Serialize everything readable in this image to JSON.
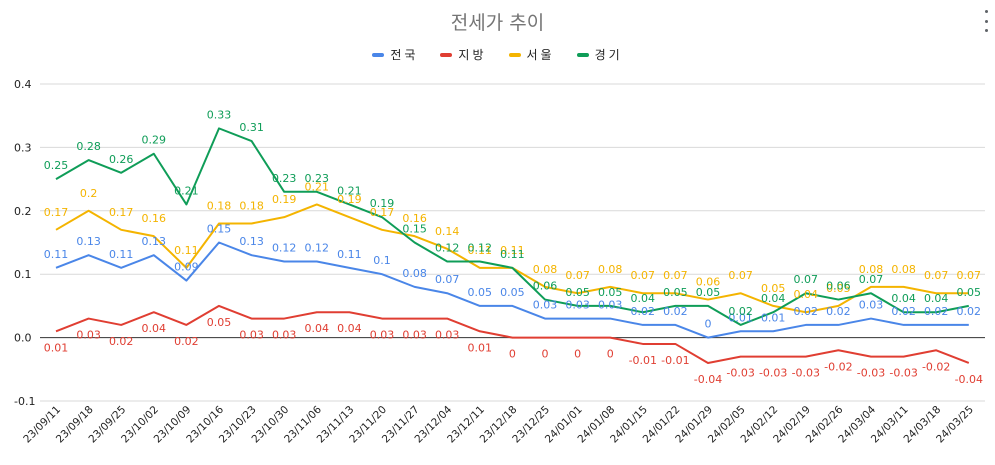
{
  "chart_data": {
    "type": "line",
    "title": "전세가 추이",
    "legend_position": "top",
    "grid": true,
    "ylim": [
      -0.1,
      0.4
    ],
    "yticks": [
      -0.1,
      0.0,
      0.1,
      0.2,
      0.3,
      0.4
    ],
    "ytick_labels": [
      "-0.1",
      "0.0",
      "0.1",
      "0.2",
      "0.3",
      "0.4"
    ],
    "categories": [
      "23/09/11",
      "23/09/18",
      "23/09/25",
      "23/10/02",
      "23/10/09",
      "23/10/16",
      "23/10/23",
      "23/10/30",
      "23/11/06",
      "23/11/13",
      "23/11/20",
      "23/11/27",
      "23/12/04",
      "23/12/11",
      "23/12/18",
      "23/12/25",
      "24/01/01",
      "24/01/08",
      "24/01/15",
      "24/01/22",
      "24/01/29",
      "24/02/05",
      "24/02/12",
      "24/02/19",
      "24/02/26",
      "24/03/04",
      "24/03/11",
      "24/03/18",
      "24/03/25"
    ],
    "series": [
      {
        "name": "전국",
        "color": "#4A86E8",
        "values": [
          0.11,
          0.13,
          0.11,
          0.13,
          0.09,
          0.15,
          0.13,
          0.12,
          0.12,
          0.11,
          0.1,
          0.08,
          0.07,
          0.05,
          0.05,
          0.03,
          0.03,
          0.03,
          0.02,
          0.02,
          0,
          0.01,
          0.01,
          0.02,
          0.02,
          0.03,
          0.02,
          0.02,
          0.02
        ],
        "labels": [
          "0.11",
          "0.13",
          "0.11",
          "0.13",
          "0.09",
          "0.15",
          "0.13",
          "0.12",
          "0.12",
          "0.11",
          "0.1",
          "0.08",
          "0.07",
          "0.05",
          "0.05",
          "0.03",
          "0.03",
          "0.03",
          "0.02",
          "0.02",
          "0",
          "0.01",
          "0.01",
          "0.02",
          "0.02",
          "0.03",
          "0.02",
          "0.02",
          "0.02"
        ]
      },
      {
        "name": "지방",
        "color": "#E03E32",
        "values": [
          0.01,
          0.03,
          0.02,
          0.04,
          0.02,
          0.05,
          0.03,
          0.03,
          0.04,
          0.04,
          0.03,
          0.03,
          0.03,
          0.01,
          0,
          0,
          0,
          0,
          -0.01,
          -0.01,
          -0.04,
          -0.03,
          -0.03,
          -0.03,
          -0.02,
          -0.03,
          -0.03,
          -0.02,
          -0.04
        ],
        "labels": [
          "0.01",
          "0.03",
          "0.02",
          "0.04",
          "0.02",
          "0.05",
          "0.03",
          "0.03",
          "0.04",
          "0.04",
          "0.03",
          "0.03",
          "0.03",
          "0.01",
          "0",
          "0",
          "0",
          "0",
          "-0.01",
          "-0.01",
          "-0.04",
          "-0.03",
          "-0.03",
          "-0.03",
          "-0.02",
          "-0.03",
          "-0.03",
          "-0.02",
          "-0.04"
        ]
      },
      {
        "name": "서울",
        "color": "#F4B400",
        "values": [
          0.17,
          0.2,
          0.17,
          0.16,
          0.11,
          0.18,
          0.18,
          0.19,
          0.21,
          0.19,
          0.17,
          0.16,
          0.14,
          0.11,
          0.11,
          0.08,
          0.07,
          0.08,
          0.07,
          0.07,
          0.06,
          0.07,
          0.05,
          0.04,
          0.05,
          0.08,
          0.08,
          0.07,
          0.07
        ],
        "labels": [
          "0.17",
          "0.2",
          "0.17",
          "0.16",
          "0.11",
          "0.18",
          "0.18",
          "0.19",
          "0.21",
          "0.19",
          "0.17",
          "0.16",
          "0.14",
          "0.11",
          "0.11",
          "0.08",
          "0.07",
          "0.08",
          "0.07",
          "0.07",
          "0.06",
          "0.07",
          "0.05",
          "0.04",
          "0.05",
          "0.08",
          "0.08",
          "0.07",
          "0.07"
        ]
      },
      {
        "name": "경기",
        "color": "#0F9D58",
        "values": [
          0.25,
          0.28,
          0.26,
          0.29,
          0.21,
          0.33,
          0.31,
          0.23,
          0.23,
          0.21,
          0.19,
          0.15,
          0.12,
          0.12,
          0.11,
          0.06,
          0.05,
          0.05,
          0.04,
          0.05,
          0.05,
          0.02,
          0.04,
          0.07,
          0.06,
          0.07,
          0.04,
          0.04,
          0.05
        ],
        "labels": [
          "0.25",
          "0.28",
          "0.26",
          "0.29",
          "0.21",
          "0.33",
          "0.31",
          "0.23",
          "0.23",
          "0.21",
          "0.19",
          "0.15",
          "0.12",
          "0.12",
          "0.11",
          "0.06",
          "0.05",
          "0.05",
          "0.04",
          "0.05",
          "0.05",
          "0.02",
          "0.04",
          "0.07",
          "0.06",
          "0.07",
          "0.04",
          "0.04",
          "0.05"
        ]
      }
    ]
  },
  "ui": {
    "more_menu_icon": "vertical-dots-icon"
  }
}
